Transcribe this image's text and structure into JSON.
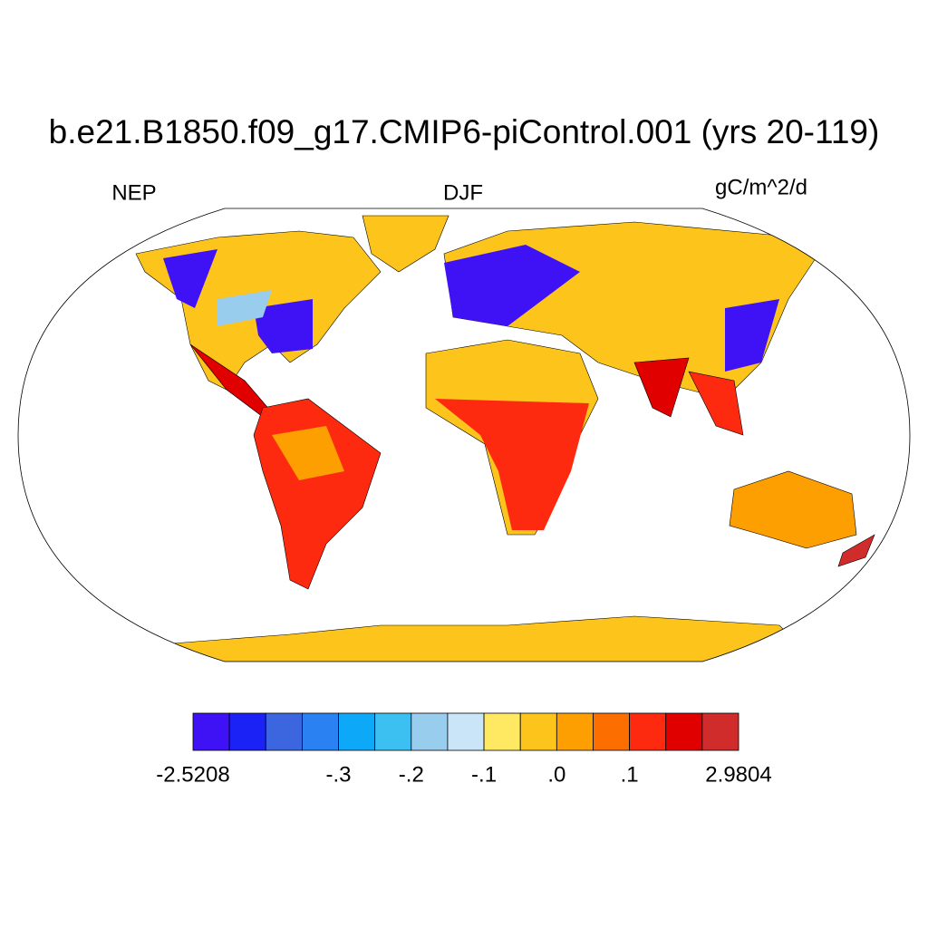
{
  "header": {
    "title": "b.e21.B1850.f09_g17.CMIP6-piControl.001 (yrs 20-119)",
    "left": "NEP",
    "center": "DJF",
    "right": "gC/m^2/d"
  },
  "colorbar": {
    "colors": [
      "#3f12f6",
      "#1a22f5",
      "#3b66e0",
      "#2a82f2",
      "#0ea8f8",
      "#3cc0f2",
      "#98cdee",
      "#cbe5f8",
      "#ffe862",
      "#fdc51c",
      "#fd9f00",
      "#fd6e00",
      "#fd2a10",
      "#e00000",
      "#d02c2c"
    ],
    "labels": [
      "-2.5208",
      null,
      null,
      null,
      "-.3",
      null,
      "-.2",
      null,
      "-.1",
      null,
      ".0",
      null,
      ".1",
      null,
      null,
      "2.9804"
    ]
  }
}
